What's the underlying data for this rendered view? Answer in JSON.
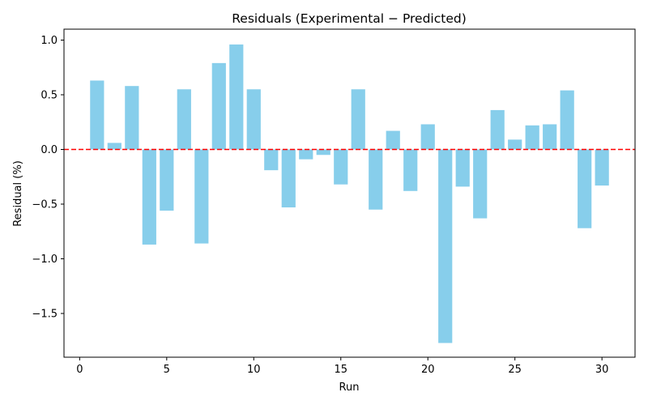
{
  "chart_data": {
    "type": "bar",
    "title": "Residuals (Experimental − Predicted)",
    "xlabel": "Run",
    "ylabel": "Residual (%)",
    "xlim": [
      -0.9,
      31.9
    ],
    "ylim": [
      -1.9,
      1.1
    ],
    "xticks": [
      0,
      5,
      10,
      15,
      20,
      25,
      30
    ],
    "yticks": [
      -1.5,
      -1.0,
      -0.5,
      0.0,
      0.5,
      1.0
    ],
    "xtick_labels": [
      "0",
      "5",
      "10",
      "15",
      "20",
      "25",
      "30"
    ],
    "ytick_labels": [
      "−1.5",
      "−1.0",
      "−0.5",
      "0.0",
      "0.5",
      "1.0"
    ],
    "bar_color": "#87CEEB",
    "reference_line": {
      "y": 0,
      "color": "#ff0000",
      "style": "dashed"
    },
    "x": [
      1,
      2,
      3,
      4,
      5,
      6,
      7,
      8,
      9,
      10,
      11,
      12,
      13,
      14,
      15,
      16,
      17,
      18,
      19,
      20,
      21,
      22,
      23,
      24,
      25,
      26,
      27,
      28,
      29,
      30
    ],
    "values": [
      0.63,
      0.06,
      0.58,
      -0.87,
      -0.56,
      0.55,
      -0.86,
      0.79,
      0.96,
      0.55,
      -0.19,
      -0.53,
      -0.09,
      -0.05,
      -0.32,
      0.55,
      -0.55,
      0.17,
      -0.38,
      0.23,
      -1.77,
      -0.34,
      -0.63,
      0.36,
      0.09,
      0.22,
      0.23,
      0.54,
      -0.72,
      -0.33
    ],
    "grid": false,
    "legend": "none"
  }
}
